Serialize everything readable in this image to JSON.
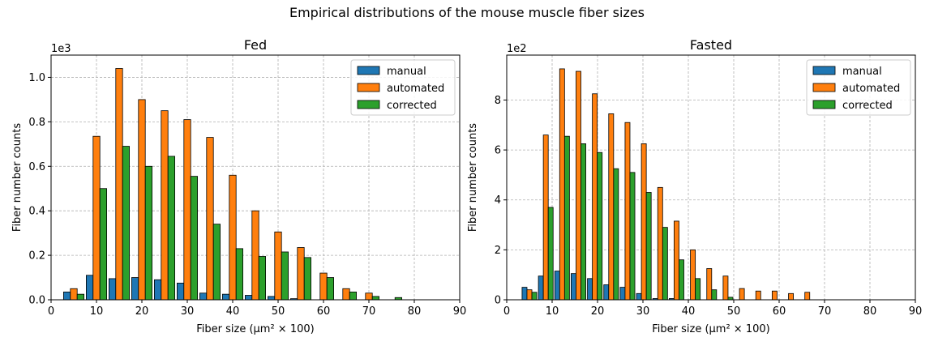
{
  "figure": {
    "suptitle": "Empirical distributions of the mouse muscle fiber sizes"
  },
  "colors": {
    "manual": "#1f77b4",
    "automated": "#ff7f0e",
    "corrected": "#2ca02c"
  },
  "chart_data": [
    {
      "type": "bar",
      "title": "Fed",
      "xlabel": "Fiber size (μm² × 100)",
      "ylabel": "Fiber number counts",
      "y_multiplier": "1e3",
      "xlim": [
        0,
        90
      ],
      "ylim": [
        0,
        1.1
      ],
      "xticks": [
        0,
        10,
        20,
        30,
        40,
        50,
        60,
        70,
        80,
        90
      ],
      "yticks": [
        0.0,
        0.2,
        0.4,
        0.6,
        0.8,
        1.0
      ],
      "ytick_labels": [
        "0.0",
        "0.2",
        "0.4",
        "0.6",
        "0.8",
        "1.0"
      ],
      "grid": true,
      "legend_position": "top-right",
      "bin_centers": [
        5,
        10,
        15,
        20,
        25,
        30,
        35,
        40,
        45,
        50,
        55,
        60,
        65,
        70,
        75
      ],
      "series": [
        {
          "name": "manual",
          "values": [
            0.035,
            0.11,
            0.095,
            0.1,
            0.09,
            0.075,
            0.03,
            0.025,
            0.02,
            0.015,
            0.005,
            0,
            0,
            0,
            0
          ]
        },
        {
          "name": "automated",
          "values": [
            0.05,
            0.735,
            1.04,
            0.9,
            0.85,
            0.81,
            0.73,
            0.56,
            0.4,
            0.305,
            0.235,
            0.12,
            0.05,
            0.03,
            0
          ]
        },
        {
          "name": "corrected",
          "values": [
            0.025,
            0.5,
            0.69,
            0.6,
            0.645,
            0.555,
            0.34,
            0.23,
            0.195,
            0.215,
            0.19,
            0.1,
            0.035,
            0.015,
            0.01
          ]
        }
      ]
    },
    {
      "type": "bar",
      "title": "Fasted",
      "xlabel": "Fiber size (μm² × 100)",
      "ylabel": "Fiber number counts",
      "y_multiplier": "1e2",
      "xlim": [
        0,
        90
      ],
      "ylim": [
        0,
        9.8
      ],
      "xticks": [
        0,
        10,
        20,
        30,
        40,
        50,
        60,
        70,
        80,
        90
      ],
      "yticks": [
        0,
        2,
        4,
        6,
        8
      ],
      "ytick_labels": [
        "0",
        "2",
        "4",
        "6",
        "8"
      ],
      "grid": true,
      "legend_position": "top-right",
      "bin_centers": [
        5,
        8.6,
        12.2,
        15.8,
        19.4,
        23,
        26.6,
        30.2,
        33.8,
        37.4,
        41,
        44.6,
        48.2,
        51.8,
        55.4,
        59,
        62.6,
        66.2
      ],
      "series": [
        {
          "name": "manual",
          "values": [
            0.5,
            0.95,
            1.15,
            1.05,
            0.85,
            0.6,
            0.5,
            0.25,
            0.05,
            0.05,
            0,
            0,
            0,
            0,
            0,
            0,
            0,
            0
          ]
        },
        {
          "name": "automated",
          "values": [
            0.4,
            6.6,
            9.25,
            9.15,
            8.25,
            7.45,
            7.1,
            6.25,
            4.5,
            3.15,
            2.0,
            1.25,
            0.95,
            0.45,
            0.35,
            0.35,
            0.25,
            0.3
          ]
        },
        {
          "name": "corrected",
          "values": [
            0.3,
            3.7,
            6.55,
            6.25,
            5.9,
            5.25,
            5.1,
            4.3,
            2.9,
            1.6,
            0.85,
            0.4,
            0.1,
            0,
            0,
            0,
            0,
            0
          ]
        }
      ]
    }
  ]
}
